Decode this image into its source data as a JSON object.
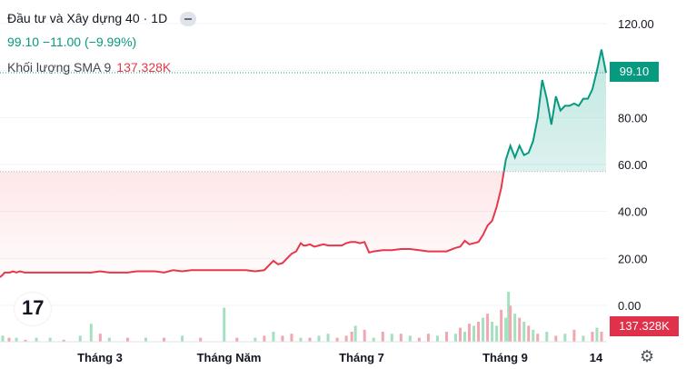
{
  "legend": {
    "symbol": "Đầu tư và Xây dựng 40",
    "interval": "1D",
    "price_line": "99.10  −11.00 (−9.99%)",
    "volume_label": "Khối lượng SMA 9",
    "volume_value": "137.328K"
  },
  "tags": {
    "price": "99.10",
    "volume": "137.328K"
  },
  "icons": {
    "logo": "tradingview-logo-icon",
    "settings": "gear-icon",
    "toggle": "collapse-icon"
  },
  "colors": {
    "up": "#089981",
    "down": "#e8374a",
    "vol_up": "#a4e0bf",
    "vol_down": "#f0a7b0"
  },
  "chart_data": {
    "type": "line",
    "ylim": [
      0,
      120
    ],
    "ytick_labels": [
      "0.00",
      "20.00",
      "40.00",
      "60.00",
      "80.00",
      "100.00",
      "120.00"
    ],
    "xtick_labels": [
      "Tháng 3",
      "Tháng Năm",
      "Tháng 7",
      "Tháng 9",
      "14"
    ],
    "baseline": 57,
    "last_price": 99.1,
    "series": [
      {
        "x": [
          0,
          3,
          5,
          8,
          11,
          14,
          18,
          22,
          27,
          33,
          40,
          50,
          60,
          70,
          80,
          90,
          100,
          110,
          120,
          130,
          140,
          150,
          160,
          170,
          180,
          190,
          200,
          210,
          220,
          230,
          240,
          250,
          260,
          270,
          280,
          290,
          300,
          305,
          310,
          315,
          320,
          325,
          330,
          333,
          336,
          340,
          345,
          350,
          355,
          360,
          365,
          370,
          375,
          380,
          385,
          390,
          395,
          400,
          405,
          410,
          420,
          430,
          440,
          450,
          460,
          470,
          480,
          490,
          500,
          505,
          510,
          515,
          520,
          525,
          530,
          535,
          540,
          545,
          550,
          555,
          560,
          565,
          570,
          575,
          580,
          585,
          590,
          595,
          600,
          605,
          610,
          615,
          620,
          625,
          630,
          635,
          640,
          645,
          650,
          655,
          660,
          665
        ],
        "values": [
          12,
          13,
          14,
          14,
          14,
          14.5,
          14,
          14.5,
          14,
          14,
          14,
          14,
          14,
          14,
          14,
          14,
          14,
          14.5,
          14,
          14,
          14,
          14.5,
          14.5,
          14.5,
          14,
          15,
          14.5,
          15,
          15,
          15,
          15,
          15,
          15,
          15,
          14.5,
          15,
          19,
          17.5,
          18,
          20,
          22,
          23,
          26.5,
          25.5,
          25.5,
          26,
          25,
          25.5,
          26,
          25.5,
          25.5,
          25.5,
          25.5,
          26.5,
          27,
          27,
          26.5,
          27,
          22.5,
          23,
          23.5,
          23.5,
          24,
          24,
          23.5,
          23,
          23,
          23,
          24.5,
          25,
          27.5,
          26,
          26.5,
          27,
          30,
          34,
          36,
          42,
          50,
          62,
          68,
          63,
          68,
          64,
          65,
          70,
          80,
          96,
          88,
          77,
          89,
          83,
          85,
          85,
          86,
          85,
          88,
          88,
          92,
          100,
          109,
          99
        ]
      }
    ],
    "volume": {
      "x": [
        3,
        10,
        18,
        28,
        40,
        55,
        70,
        88,
        100,
        110,
        120,
        140,
        160,
        180,
        200,
        220,
        246,
        260,
        280,
        290,
        300,
        310,
        320,
        330,
        340,
        350,
        360,
        370,
        380,
        386,
        390,
        400,
        410,
        420,
        430,
        440,
        450,
        460,
        470,
        480,
        490,
        500,
        505,
        510,
        515,
        520,
        525,
        530,
        535,
        540,
        545,
        550,
        555,
        558,
        560,
        565,
        570,
        575,
        580,
        585,
        590,
        600,
        610,
        620,
        630,
        640,
        650,
        655,
        660
      ],
      "values": [
        3,
        2,
        2,
        1,
        2,
        2,
        1,
        3,
        9,
        4,
        2,
        2,
        2,
        2,
        3,
        2,
        17,
        2,
        2,
        3,
        5,
        3,
        4,
        2,
        2,
        3,
        4,
        2,
        3,
        5,
        8,
        6,
        2,
        5,
        4,
        4,
        3,
        2,
        4,
        3,
        5,
        4,
        7,
        5,
        9,
        8,
        10,
        12,
        14,
        10,
        8,
        16,
        12,
        25,
        18,
        14,
        12,
        10,
        8,
        6,
        4,
        5,
        3,
        4,
        6,
        3,
        5,
        7,
        5
      ],
      "up": [
        true,
        false,
        true,
        false,
        true,
        true,
        false,
        true,
        true,
        false,
        true,
        false,
        true,
        false,
        true,
        false,
        true,
        false,
        true,
        false,
        true,
        false,
        false,
        true,
        false,
        true,
        true,
        false,
        false,
        false,
        true,
        false,
        true,
        false,
        true,
        false,
        true,
        false,
        false,
        true,
        false,
        true,
        false,
        true,
        false,
        true,
        false,
        true,
        false,
        true,
        true,
        false,
        true,
        true,
        false,
        true,
        false,
        true,
        false,
        true,
        false,
        true,
        false,
        true,
        false,
        true,
        false,
        true,
        false
      ]
    }
  }
}
